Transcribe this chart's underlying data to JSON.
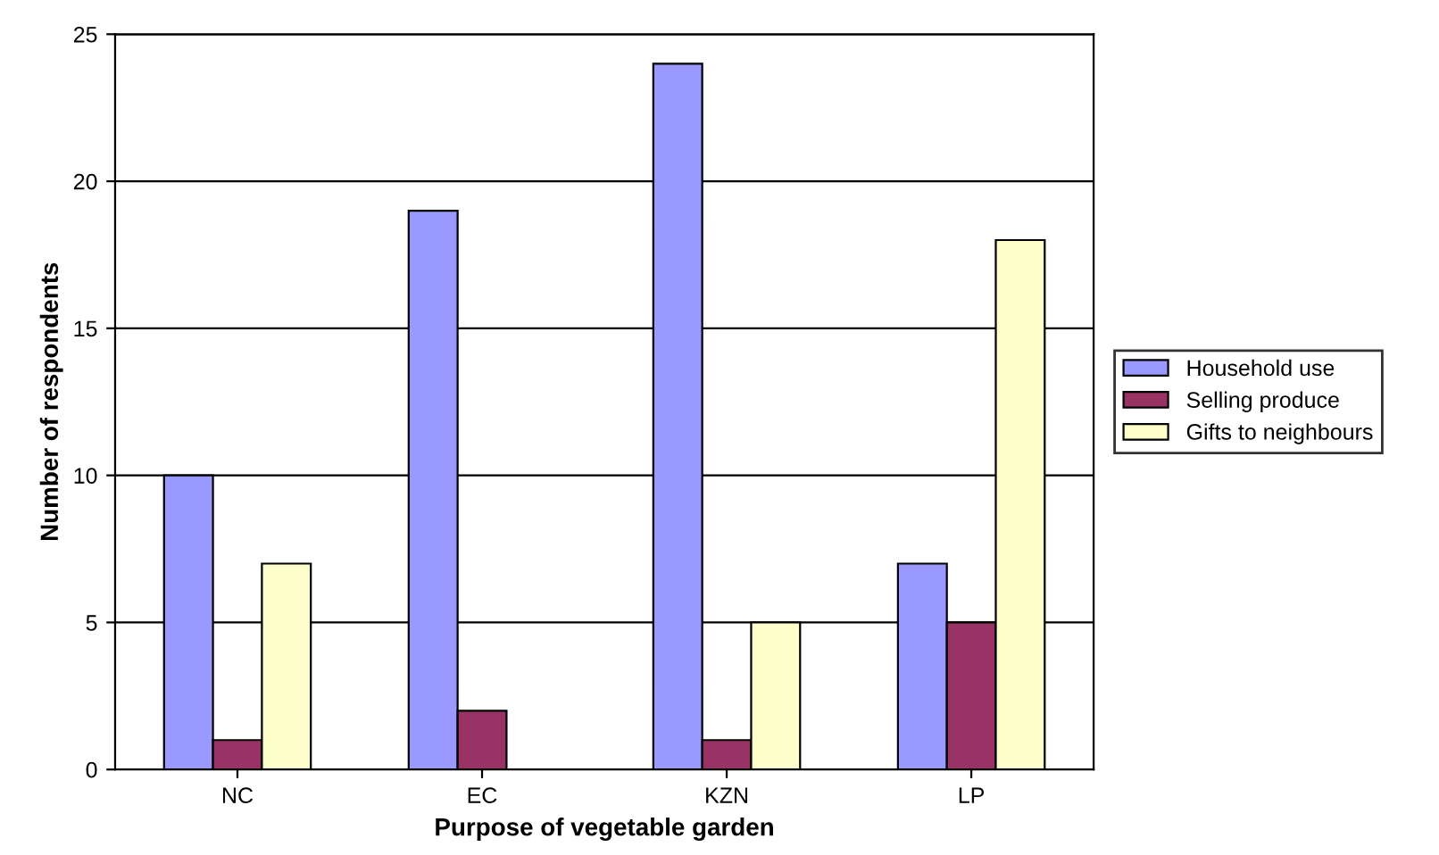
{
  "chart_data": {
    "type": "bar",
    "xlabel": "Purpose of vegetable garden",
    "ylabel": "Number of respondents",
    "categories": [
      "NC",
      "EC",
      "KZN",
      "LP"
    ],
    "series": [
      {
        "name": "Household use",
        "color": "#9999ff",
        "values": [
          10,
          19,
          24,
          7
        ]
      },
      {
        "name": "Selling produce",
        "color": "#993366",
        "values": [
          1,
          2,
          1,
          5
        ]
      },
      {
        "name": "Gifts to neighbours",
        "color": "#ffffcc",
        "values": [
          7,
          0,
          5,
          18
        ]
      }
    ],
    "ylim": [
      0,
      25
    ],
    "yticks": [
      0,
      5,
      10,
      15,
      20,
      25
    ],
    "grid": "y",
    "legend": "right"
  }
}
